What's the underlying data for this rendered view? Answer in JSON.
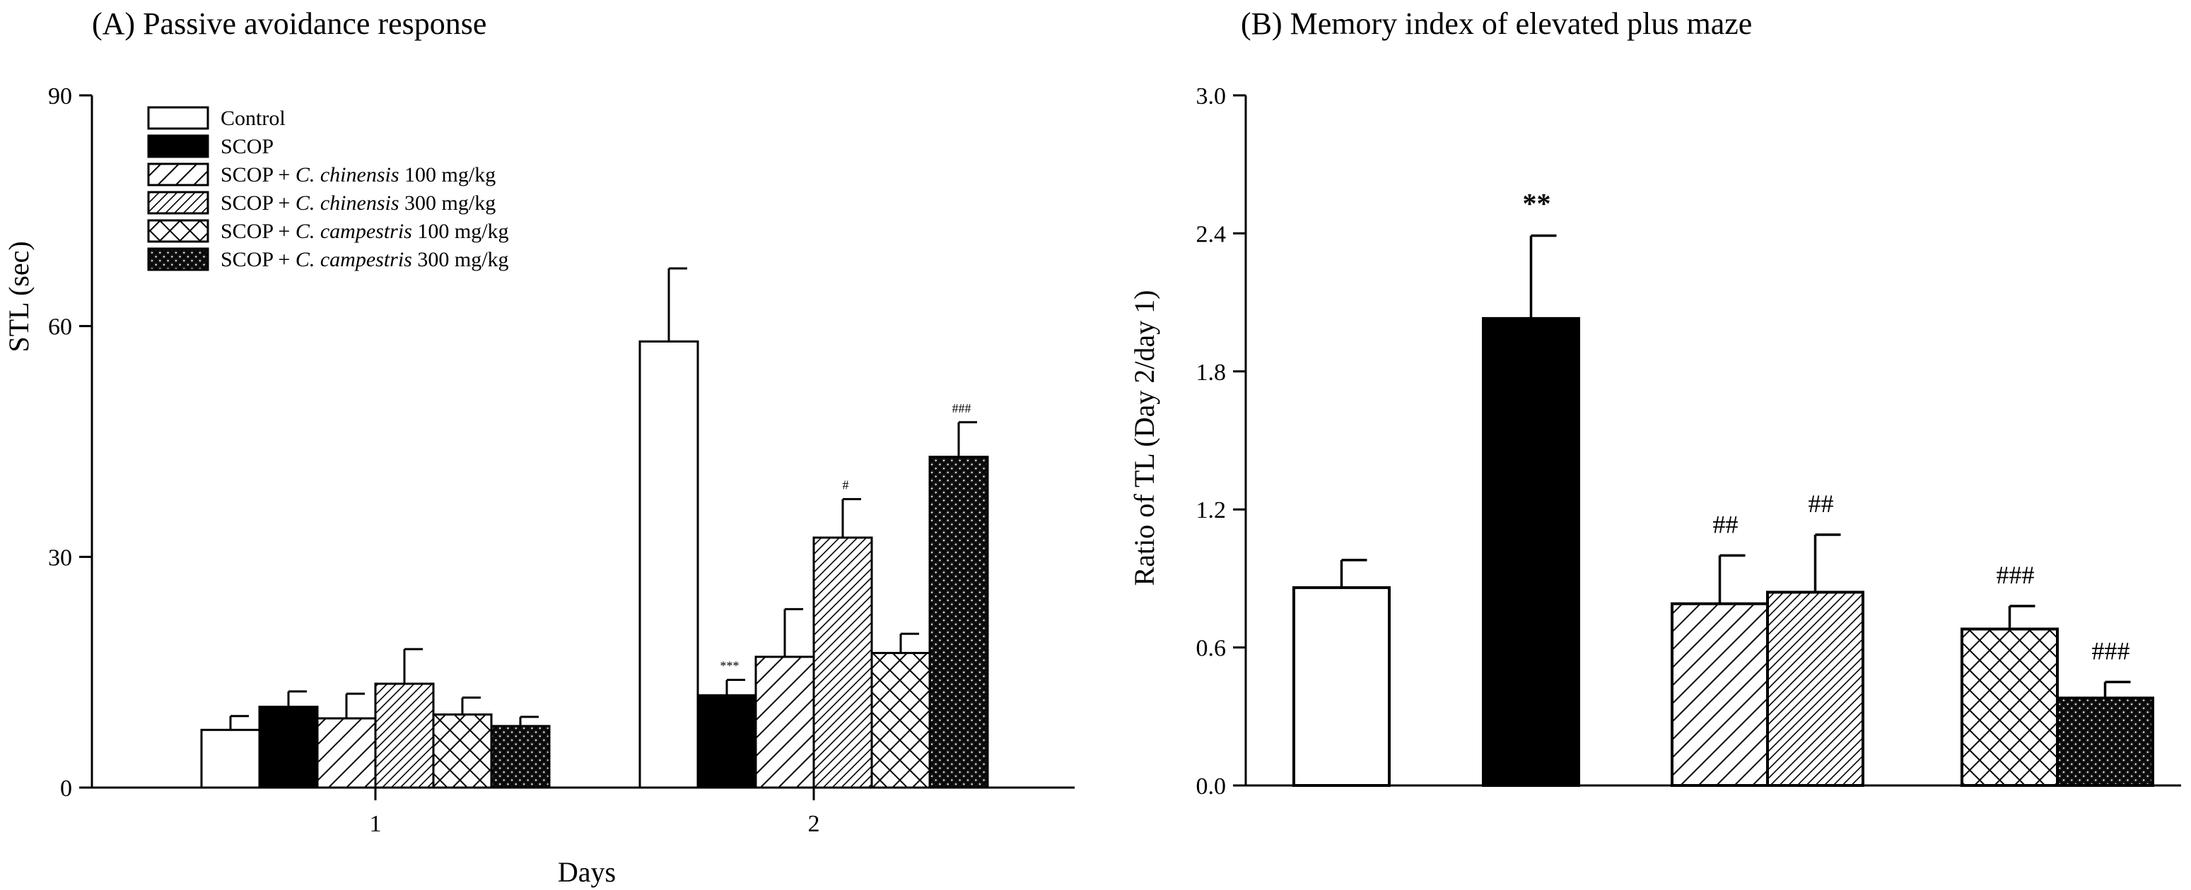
{
  "chart_data": [
    {
      "type": "bar",
      "title": "(A) Passive avoidance response",
      "xlabel": "Days",
      "ylabel": "STL (sec)",
      "ylim": [
        0,
        90
      ],
      "yticks": [
        "0",
        "30",
        "60",
        "90"
      ],
      "categories": [
        "1",
        "2"
      ],
      "legend": "top-left",
      "series": [
        {
          "name": "Control",
          "pattern": "white",
          "values": [
            7.5,
            58
          ],
          "errors": [
            1.8,
            9.5
          ],
          "annotations": [
            "",
            ""
          ]
        },
        {
          "name": "SCOP",
          "pattern": "black",
          "values": [
            10.5,
            12
          ],
          "errors": [
            2.0,
            2.0
          ],
          "annotations": [
            "",
            "***"
          ]
        },
        {
          "name": "SCOP + C. chinensis 100 mg/kg",
          "pattern": "hatch-sparse",
          "values": [
            9,
            17
          ],
          "errors": [
            3.2,
            6.2
          ],
          "annotations": [
            "",
            ""
          ]
        },
        {
          "name": "SCOP + C. chinensis 300 mg/kg",
          "pattern": "hatch-dense",
          "values": [
            13.5,
            32.5
          ],
          "errors": [
            4.5,
            5.0
          ],
          "annotations": [
            "",
            "#"
          ]
        },
        {
          "name": "SCOP + C. campestris 100 mg/kg",
          "pattern": "cross",
          "values": [
            9.5,
            17.5
          ],
          "errors": [
            2.2,
            2.5
          ],
          "annotations": [
            "",
            ""
          ]
        },
        {
          "name": "SCOP + C. campestris 300 mg/kg",
          "pattern": "dense-cross",
          "values": [
            8,
            43
          ],
          "errors": [
            1.2,
            4.5
          ],
          "annotations": [
            "",
            "###"
          ]
        }
      ]
    },
    {
      "type": "bar",
      "title": "(B) Memory index of elevated plus maze",
      "xlabel": "",
      "ylabel": "Ratio of TL (Day 2/day 1)",
      "ylim": [
        0,
        3.0
      ],
      "yticks": [
        "0.0",
        "0.6",
        "1.2",
        "1.8",
        "2.4",
        "3.0"
      ],
      "bars": [
        {
          "group": "Control",
          "pattern": "white",
          "value": 0.86,
          "error": 0.12,
          "annotation": ""
        },
        {
          "group": "SCOP",
          "pattern": "black",
          "value": 2.03,
          "error": 0.36,
          "annotation": "**"
        },
        {
          "group": "SCOP + C. chinensis 100 mg/kg",
          "pattern": "hatch-sparse",
          "value": 0.79,
          "error": 0.21,
          "annotation": "##"
        },
        {
          "group": "SCOP + C. chinensis 300 mg/kg",
          "pattern": "hatch-dense",
          "value": 0.84,
          "error": 0.25,
          "annotation": "##"
        },
        {
          "group": "SCOP + C. campestris 100 mg/kg",
          "pattern": "cross",
          "value": 0.68,
          "error": 0.1,
          "annotation": "###"
        },
        {
          "group": "SCOP + C. campestris 300 mg/kg",
          "pattern": "dense-cross",
          "value": 0.38,
          "error": 0.07,
          "annotation": "###"
        }
      ]
    }
  ],
  "legend_entries": [
    {
      "prefix": "Control",
      "italic": "",
      "suffix": ""
    },
    {
      "prefix": "SCOP",
      "italic": "",
      "suffix": ""
    },
    {
      "prefix": "SCOP + ",
      "italic": "C. chinensis",
      "suffix": " 100 mg/kg"
    },
    {
      "prefix": "SCOP + ",
      "italic": "C. chinensis",
      "suffix": " 300 mg/kg"
    },
    {
      "prefix": "SCOP + ",
      "italic": "C. campestris",
      "suffix": " 100 mg/kg"
    },
    {
      "prefix": "SCOP + ",
      "italic": "C. campestris",
      "suffix": " 300 mg/kg"
    }
  ]
}
